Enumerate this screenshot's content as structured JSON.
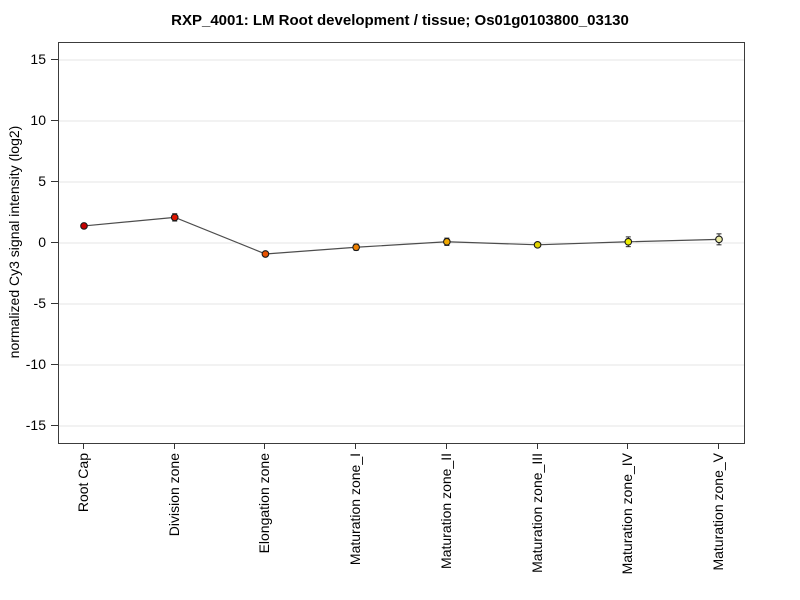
{
  "title": "RXP_4001: LM Root development / tissue; Os01g0103800_03130",
  "y_axis": {
    "label": "normalized Cy3 signal intensity (log2)"
  },
  "chart_data": {
    "type": "line",
    "title": "RXP_4001: LM Root development / tissue; Os01g0103800_03130",
    "xlabel": "",
    "ylabel": "normalized Cy3 signal intensity (log2)",
    "ylim": [
      -16.4,
      16.4
    ],
    "yticks": [
      15,
      10,
      5,
      0,
      -5,
      -10,
      -15
    ],
    "grid": true,
    "legend_position": "none",
    "categories": [
      "Root Cap",
      "Division zone",
      "Elongation zone",
      "Maturation zone_I",
      "Maturation zone_II",
      "Maturation zone_III",
      "Maturation zone_IV",
      "Maturation zone_V"
    ],
    "series": [
      {
        "name": "Os01g0103800_03130",
        "values": [
          1.4,
          2.1,
          -0.9,
          -0.35,
          0.1,
          -0.15,
          0.1,
          0.3
        ],
        "errors": [
          0.2,
          0.3,
          0.15,
          0.25,
          0.3,
          0.15,
          0.4,
          0.45
        ],
        "point_colors": [
          "#c40000",
          "#de1600",
          "#e85200",
          "#ee8000",
          "#f0a800",
          "#e2d400",
          "#eeee00",
          "#ededa6"
        ]
      }
    ],
    "colors": {
      "line": "#4d4d4d",
      "point_outline": "#1a1a1a",
      "error_bar": "#262626",
      "gridline": "#e6e6e6",
      "frame": "#3c3c3c",
      "tick": "#333333"
    }
  }
}
